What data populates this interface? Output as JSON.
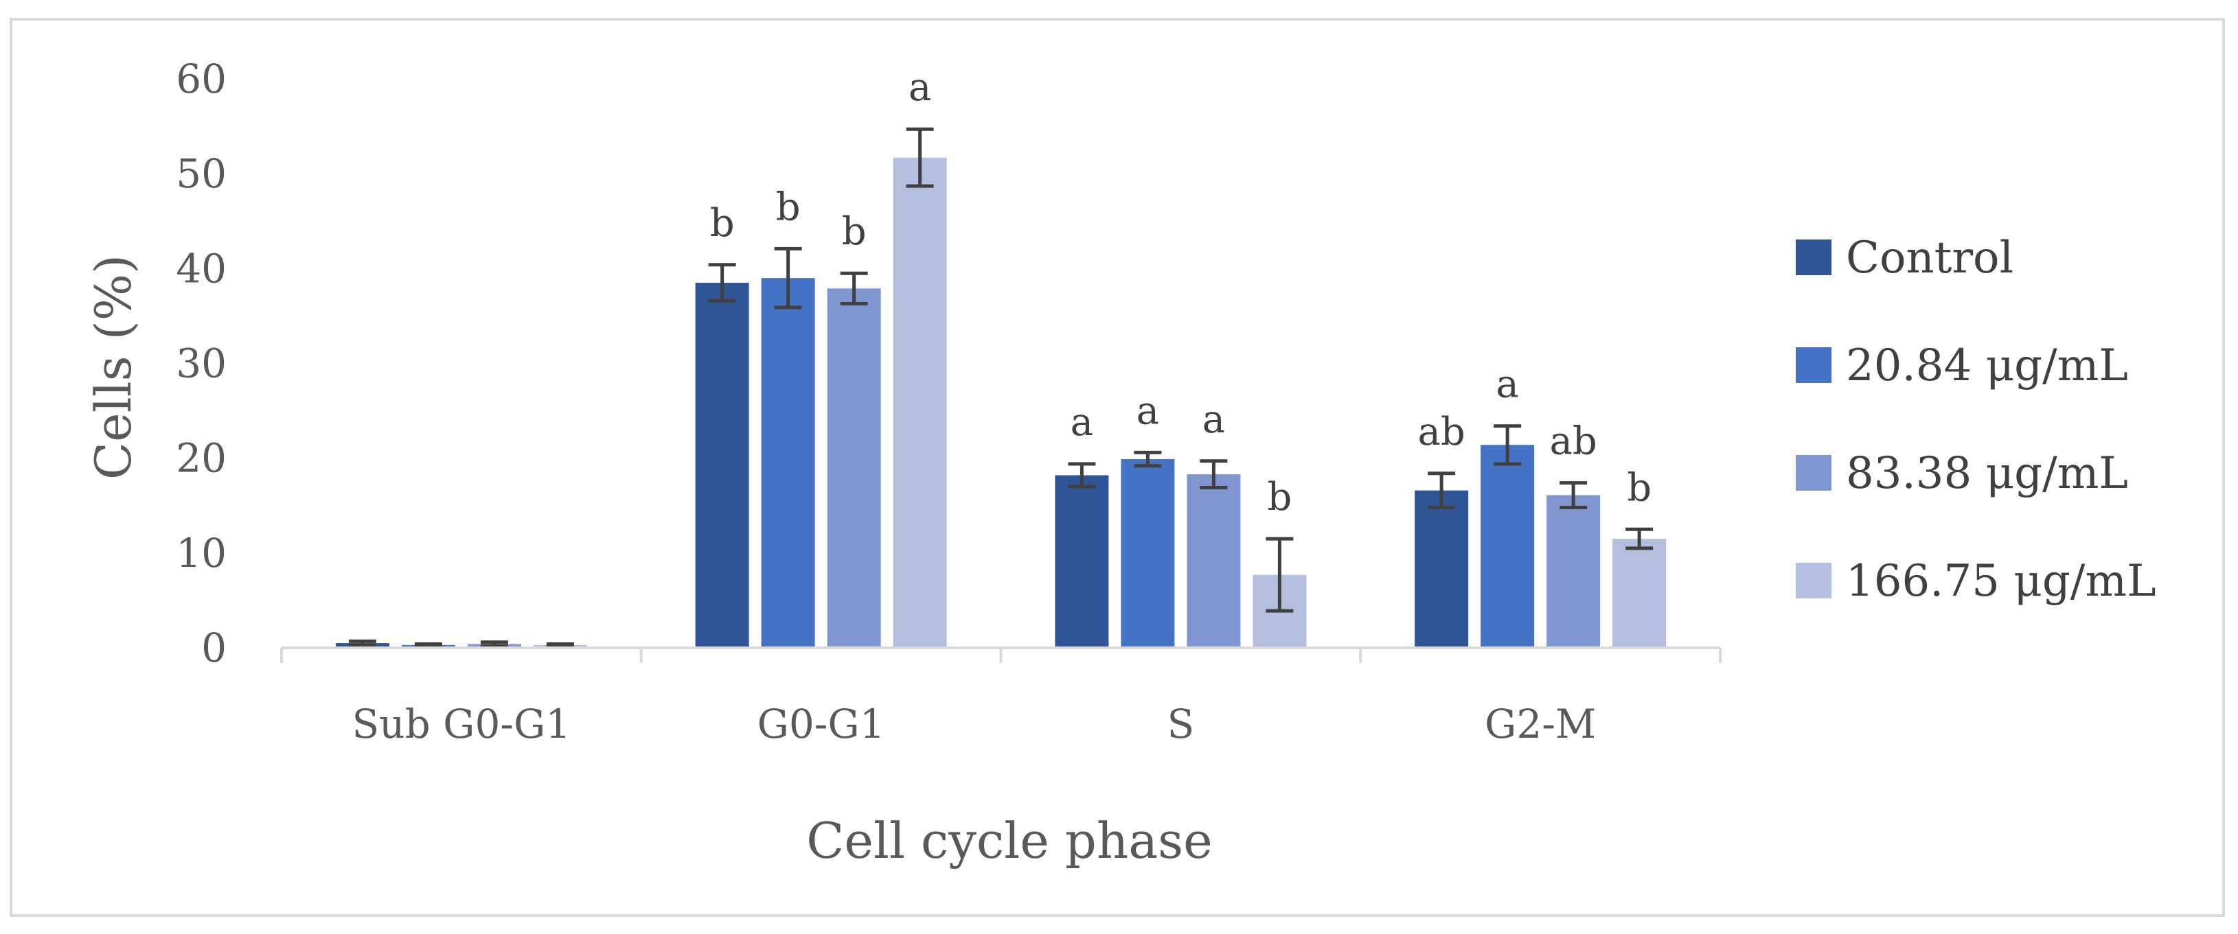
{
  "chart_data": {
    "type": "bar",
    "title": "",
    "xlabel": "Cell cycle phase",
    "ylabel": "Cells (%)",
    "ylim": [
      0,
      60
    ],
    "yticks": [
      0,
      10,
      20,
      30,
      40,
      50,
      60
    ],
    "grid": false,
    "legend_position": "right",
    "categories": [
      "Sub G0-G1",
      "G0-G1",
      "S",
      "G2-M"
    ],
    "series": [
      {
        "name": "Control",
        "color": "#2f5597",
        "values": [
          0.5,
          38.5,
          18.2,
          16.6
        ],
        "errors": [
          0.2,
          1.9,
          1.2,
          1.8
        ],
        "labels": [
          "",
          "b",
          "a",
          "ab"
        ]
      },
      {
        "name": "20.84 μg/mL",
        "color": "#4472c4",
        "values": [
          0.3,
          39.0,
          19.9,
          21.4
        ],
        "errors": [
          0.1,
          3.1,
          0.7,
          2.0
        ],
        "labels": [
          "",
          "b",
          "a",
          "a"
        ]
      },
      {
        "name": "83.38 μg/mL",
        "color": "#7f96d1",
        "values": [
          0.4,
          37.9,
          18.3,
          16.1
        ],
        "errors": [
          0.2,
          1.6,
          1.4,
          1.3
        ],
        "labels": [
          "",
          "b",
          "a",
          "ab"
        ]
      },
      {
        "name": "166.75 μg/mL",
        "color": "#b4bfe0",
        "values": [
          0.3,
          51.7,
          7.7,
          11.5
        ],
        "errors": [
          0.1,
          3.0,
          3.8,
          1.0
        ],
        "labels": [
          "",
          "a",
          "b",
          "b"
        ]
      }
    ]
  }
}
